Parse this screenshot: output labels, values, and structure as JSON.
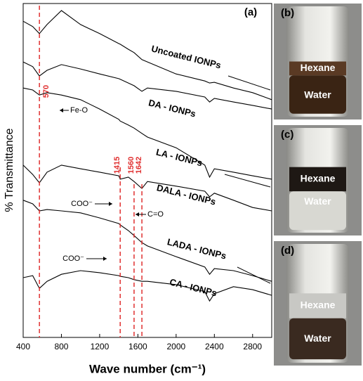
{
  "chart_data": {
    "type": "line",
    "panel_label": "(a)",
    "x_label": "Wave number (cm⁻¹)",
    "y_label": "% Transmittance",
    "xlim": [
      400,
      3000
    ],
    "xticks": [
      400,
      800,
      1200,
      1600,
      2000,
      2400,
      2800
    ],
    "ylim": [
      0,
      100
    ],
    "x": [
      400,
      500,
      570,
      650,
      800,
      1000,
      1200,
      1400,
      1415,
      1500,
      1560,
      1642,
      1700,
      2000,
      2300,
      2350,
      2400,
      2600,
      2800,
      3000
    ],
    "series": [
      {
        "name": "Uncoated IONPs",
        "color": "#000000",
        "values": [
          94.7,
          93.1,
          91.0,
          93.7,
          97.9,
          93.7,
          91.0,
          88.0,
          87.8,
          86.3,
          85.3,
          83.2,
          82.5,
          78.9,
          76.8,
          76.2,
          76.4,
          74.7,
          73.3,
          71.2
        ]
      },
      {
        "name": "DA - IONPs",
        "color": "#000000",
        "values": [
          82.5,
          81.1,
          78.3,
          80.0,
          81.7,
          80.4,
          78.9,
          77.5,
          77.3,
          76.2,
          75.4,
          73.7,
          74.7,
          73.7,
          72.0,
          70.5,
          71.6,
          70.5,
          69.5,
          68.4
        ]
      },
      {
        "name": "LA - IONPs",
        "color": "#000000",
        "values": [
          74.7,
          74.1,
          72.6,
          73.3,
          72.6,
          71.2,
          68.4,
          65.3,
          64.8,
          63.6,
          62.7,
          61.1,
          60.0,
          56.8,
          51.6,
          48.0,
          50.5,
          49.5,
          48.4,
          47.4
        ]
      },
      {
        "name": "DALA - IONPs",
        "color": "#000000",
        "values": [
          51.6,
          48.8,
          46.3,
          49.5,
          51.6,
          50.5,
          49.5,
          48.4,
          47.4,
          48.0,
          46.7,
          44.6,
          46.7,
          45.3,
          43.8,
          42.1,
          43.2,
          41.1,
          38.9,
          37.9
        ]
      },
      {
        "name": "LADA - IONPs",
        "color": "#000000",
        "values": [
          41.1,
          40.0,
          37.9,
          38.3,
          37.9,
          37.3,
          35.8,
          34.1,
          33.7,
          32.0,
          30.5,
          28.4,
          27.4,
          24.2,
          21.1,
          18.9,
          20.6,
          20.0,
          18.5,
          16.8
        ]
      },
      {
        "name": "CA - IONPs",
        "color": "#000000",
        "values": [
          17.9,
          18.5,
          14.7,
          16.8,
          18.9,
          20.0,
          19.4,
          18.5,
          18.3,
          17.9,
          17.3,
          16.8,
          16.8,
          15.8,
          13.7,
          10.9,
          13.1,
          15.2,
          14.3,
          12.6
        ]
      }
    ],
    "markers": [
      {
        "value": 570,
        "label": "570"
      },
      {
        "value": 1415,
        "label": "1415"
      },
      {
        "value": 1560,
        "label": "1560"
      },
      {
        "value": 1642,
        "label": "1642"
      }
    ],
    "marker_color": "#e03030",
    "annotations": [
      "Fe-O",
      "COO⁻",
      "C=O",
      "COO⁻"
    ]
  },
  "photos": [
    {
      "label": "(b)",
      "top": "Hexane",
      "bottom": "Water"
    },
    {
      "label": "(c)",
      "top": "Hexane",
      "bottom": "Water"
    },
    {
      "label": "(d)",
      "top": "Hexane",
      "bottom": "Water"
    }
  ]
}
